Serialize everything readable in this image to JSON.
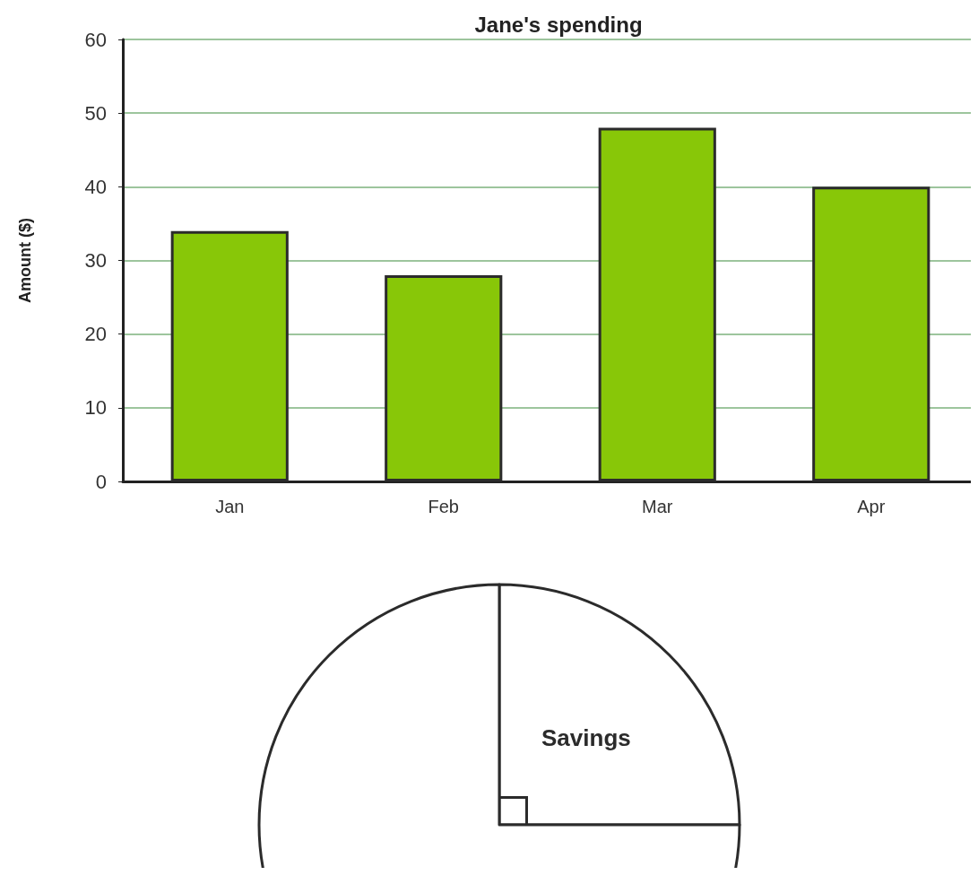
{
  "chart_data": [
    {
      "type": "bar",
      "title": "Jane's spending",
      "ylabel": "Amount ($)",
      "categories": [
        "Jan",
        "Feb",
        "Mar",
        "Apr"
      ],
      "values": [
        34,
        28,
        48,
        40
      ],
      "color": "#88c708",
      "ylim": [
        0,
        60
      ],
      "yticks": [
        0,
        10,
        20,
        30,
        40,
        50,
        60
      ],
      "grid": "y"
    },
    {
      "type": "pie",
      "categories": [
        "Savings",
        null
      ],
      "values": [
        25,
        75
      ],
      "colors": [
        "#ffffff",
        "#ffffff"
      ]
    }
  ]
}
